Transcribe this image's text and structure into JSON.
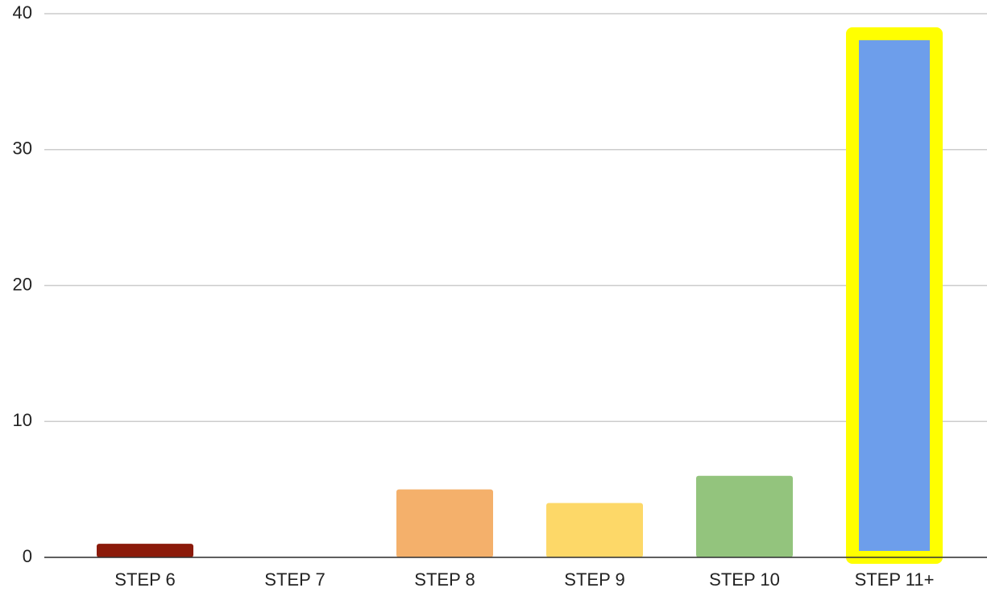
{
  "chart_data": {
    "type": "bar",
    "categories": [
      "STEP 6",
      "STEP 7",
      "STEP 8",
      "STEP 9",
      "STEP 10",
      "STEP 11+"
    ],
    "values": [
      1,
      0,
      5,
      4,
      6,
      39
    ],
    "colors": [
      "#8b1a0a",
      "#c0392b",
      "#f4b06b",
      "#fdd868",
      "#93c47d",
      "#6d9eeb"
    ],
    "highlight": {
      "index": 5,
      "color": "#ffff00"
    },
    "ylim": [
      0,
      40
    ],
    "yticks": [
      0,
      10,
      20,
      30,
      40
    ],
    "grid": true
  }
}
